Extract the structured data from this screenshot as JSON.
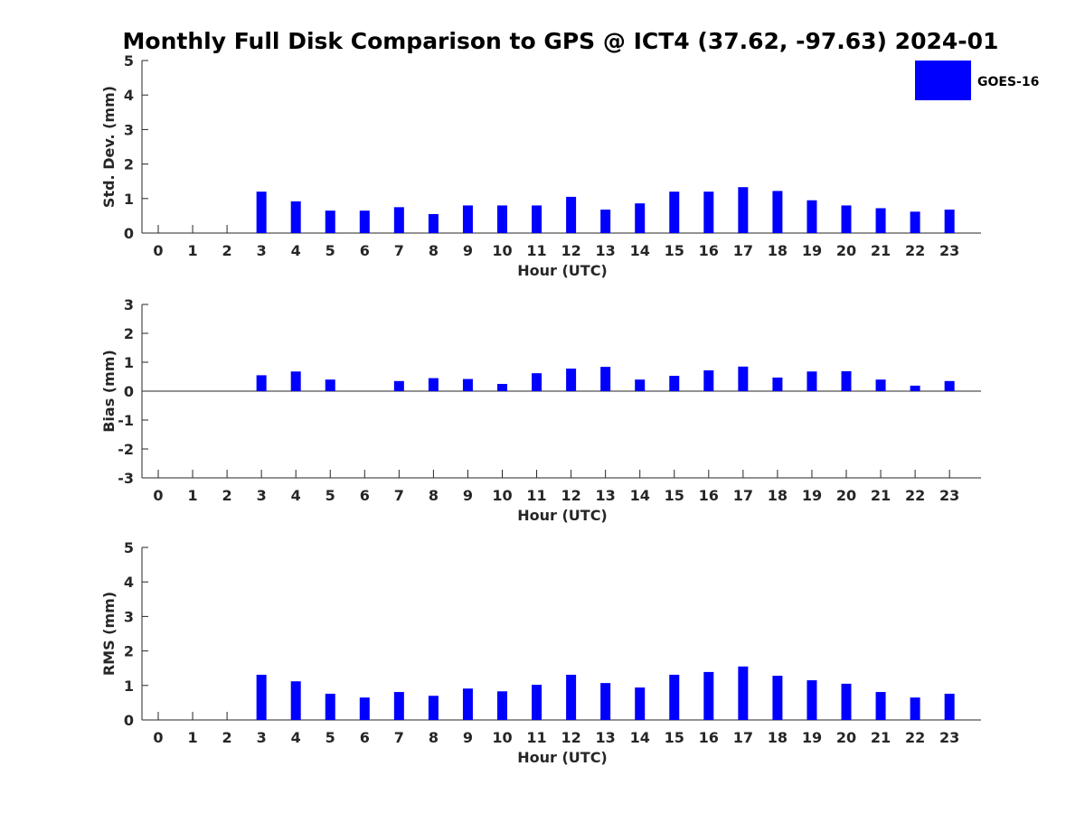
{
  "title": "Monthly Full Disk Comparison to GPS @ ICT4 (37.62, -97.63) 2024-01",
  "legend": {
    "label": "GOES-16",
    "color": "#0000ff",
    "placement": "top-right"
  },
  "chart_data": [
    {
      "type": "bar",
      "name": "std-dev",
      "xlabel": "Hour (UTC)",
      "ylabel": "Std. Dev. (mm)",
      "ylim": [
        0,
        5
      ],
      "yticks": [
        0,
        1,
        2,
        3,
        4,
        5
      ],
      "categories": [
        "0",
        "1",
        "2",
        "3",
        "4",
        "5",
        "6",
        "7",
        "8",
        "9",
        "10",
        "11",
        "12",
        "13",
        "14",
        "15",
        "16",
        "17",
        "18",
        "19",
        "20",
        "21",
        "22",
        "23"
      ],
      "series": [
        {
          "name": "GOES-16",
          "values": [
            null,
            null,
            null,
            1.2,
            0.92,
            0.65,
            0.65,
            0.75,
            0.55,
            0.8,
            0.8,
            0.8,
            1.05,
            0.68,
            0.86,
            1.2,
            1.2,
            1.33,
            1.22,
            0.95,
            0.8,
            0.72,
            0.62,
            0.68
          ]
        }
      ],
      "grid": false
    },
    {
      "type": "bar",
      "name": "bias",
      "xlabel": "Hour (UTC)",
      "ylabel": "Bias (mm)",
      "ylim": [
        -3,
        3
      ],
      "yticks": [
        -3,
        -2,
        -1,
        0,
        1,
        2,
        3
      ],
      "categories": [
        "0",
        "1",
        "2",
        "3",
        "4",
        "5",
        "6",
        "7",
        "8",
        "9",
        "10",
        "11",
        "12",
        "13",
        "14",
        "15",
        "16",
        "17",
        "18",
        "19",
        "20",
        "21",
        "22",
        "23"
      ],
      "series": [
        {
          "name": "GOES-16",
          "values": [
            null,
            null,
            null,
            0.55,
            0.68,
            0.4,
            0.0,
            0.35,
            0.45,
            0.42,
            0.25,
            0.62,
            0.78,
            0.84,
            0.4,
            0.53,
            0.72,
            0.85,
            0.47,
            0.68,
            0.69,
            0.4,
            0.19,
            0.35
          ]
        }
      ],
      "grid": false
    },
    {
      "type": "bar",
      "name": "rms",
      "xlabel": "Hour (UTC)",
      "ylabel": "RMS (mm)",
      "ylim": [
        0,
        5
      ],
      "yticks": [
        0,
        1,
        2,
        3,
        4,
        5
      ],
      "categories": [
        "0",
        "1",
        "2",
        "3",
        "4",
        "5",
        "6",
        "7",
        "8",
        "9",
        "10",
        "11",
        "12",
        "13",
        "14",
        "15",
        "16",
        "17",
        "18",
        "19",
        "20",
        "21",
        "22",
        "23"
      ],
      "series": [
        {
          "name": "GOES-16",
          "values": [
            null,
            null,
            null,
            1.31,
            1.12,
            0.76,
            0.65,
            0.81,
            0.7,
            0.91,
            0.83,
            1.02,
            1.31,
            1.07,
            0.94,
            1.31,
            1.39,
            1.55,
            1.28,
            1.15,
            1.05,
            0.81,
            0.65,
            0.76
          ]
        }
      ],
      "grid": false
    }
  ]
}
